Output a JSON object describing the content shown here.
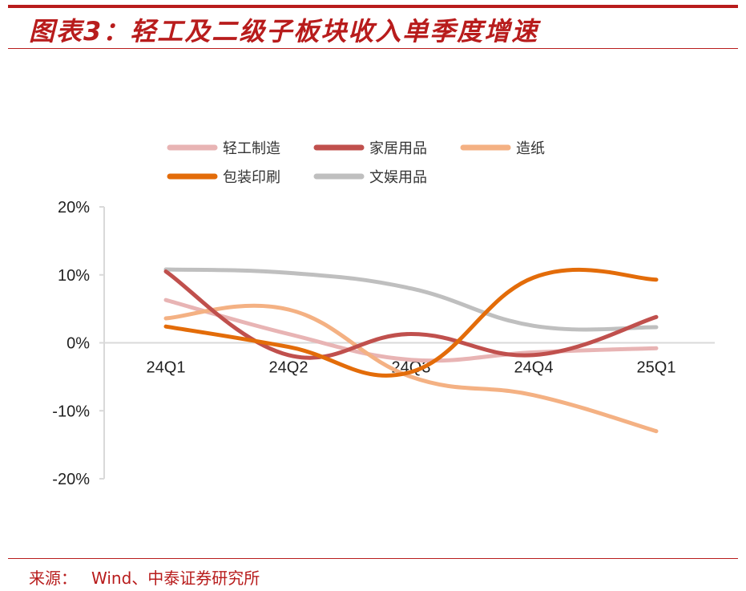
{
  "header": {
    "title": "图表3：轻工及二级子板块收入单季度增速"
  },
  "footer": {
    "source_label": "来源：",
    "source_text": "Wind、中泰证券研究所"
  },
  "chart_data": {
    "type": "line",
    "title": "",
    "xlabel": "",
    "ylabel": "",
    "categories": [
      "24Q1",
      "24Q2",
      "24Q3",
      "24Q4",
      "25Q1"
    ],
    "y_ticks": [
      "20%",
      "10%",
      "0%",
      "-10%",
      "-20%"
    ],
    "y_tick_values": [
      20,
      10,
      0,
      -10,
      -20
    ],
    "ylim": [
      -20,
      20
    ],
    "grid": false,
    "legend_position": "top",
    "series": [
      {
        "name": "轻工制造",
        "color": "#e8b4b4",
        "values": [
          6.3,
          1.3,
          -2.5,
          -1.4,
          -0.8
        ]
      },
      {
        "name": "家居用品",
        "color": "#c0504d",
        "values": [
          10.5,
          -1.8,
          1.3,
          -1.8,
          3.8
        ]
      },
      {
        "name": "造纸",
        "color": "#f4b183",
        "values": [
          3.6,
          4.9,
          -5.0,
          -7.7,
          -13.0
        ]
      },
      {
        "name": "包装印刷",
        "color": "#e36c09",
        "values": [
          2.4,
          -0.6,
          -4.3,
          9.6,
          9.3
        ]
      },
      {
        "name": "文娱用品",
        "color": "#bfbfbf",
        "values": [
          10.8,
          10.3,
          8.0,
          2.5,
          2.3
        ]
      }
    ]
  }
}
